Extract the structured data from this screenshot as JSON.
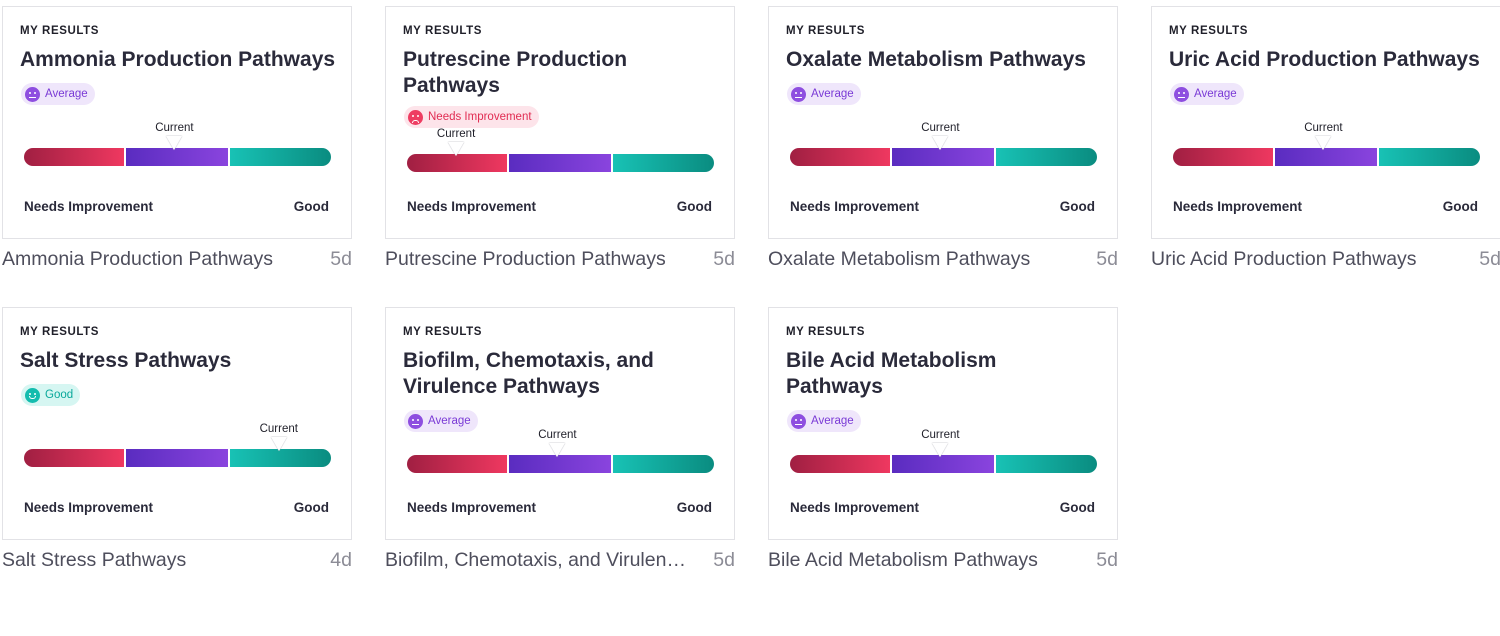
{
  "cards": [
    {
      "eyebrow": "MY RESULTS",
      "title": "Ammonia Production Pathways",
      "status": "Average",
      "status_kind": "average",
      "marker_label": "Current",
      "marker_position": 0.49,
      "scale_low": "Needs Improvement",
      "scale_high": "Good",
      "caption": "Ammonia Production Pathways",
      "age": "5d"
    },
    {
      "eyebrow": "MY RESULTS",
      "title": "Putrescine Production Pathways",
      "status": "Needs Improvement",
      "status_kind": "needs",
      "marker_label": "Current",
      "marker_position": 0.16,
      "scale_low": "Needs Improvement",
      "scale_high": "Good",
      "caption": "Putrescine Production Pathways",
      "age": "5d"
    },
    {
      "eyebrow": "MY RESULTS",
      "title": "Oxalate Metabolism Pathways",
      "status": "Average",
      "status_kind": "average",
      "marker_label": "Current",
      "marker_position": 0.49,
      "scale_low": "Needs Improvement",
      "scale_high": "Good",
      "caption": "Oxalate Metabolism Pathways",
      "age": "5d"
    },
    {
      "eyebrow": "MY RESULTS",
      "title": "Uric Acid Production Pathways",
      "status": "Average",
      "status_kind": "average",
      "marker_label": "Current",
      "marker_position": 0.49,
      "scale_low": "Needs Improvement",
      "scale_high": "Good",
      "caption": "Uric Acid Production Pathways",
      "age": "5d"
    },
    {
      "eyebrow": "MY RESULTS",
      "title": "Salt Stress Pathways",
      "status": "Good",
      "status_kind": "good",
      "marker_label": "Current",
      "marker_position": 0.83,
      "scale_low": "Needs Improvement",
      "scale_high": "Good",
      "caption": "Salt Stress Pathways",
      "age": "4d"
    },
    {
      "eyebrow": "MY RESULTS",
      "title": "Biofilm, Chemotaxis, and Virulence Pathways",
      "status": "Average",
      "status_kind": "average",
      "marker_label": "Current",
      "marker_position": 0.49,
      "scale_low": "Needs Improvement",
      "scale_high": "Good",
      "caption": "Biofilm, Chemotaxis, and Virulence Pathways",
      "age": "5d"
    },
    {
      "eyebrow": "MY RESULTS",
      "title": "Bile Acid Metabolism Pathways",
      "status": "Average",
      "status_kind": "average",
      "marker_label": "Current",
      "marker_position": 0.49,
      "scale_low": "Needs Improvement",
      "scale_high": "Good",
      "caption": "Bile Acid Metabolism Pathways",
      "age": "5d"
    }
  ],
  "colors": {
    "needs_improvement": "#ef3860",
    "average": "#8a44de",
    "good": "#14bcae"
  }
}
